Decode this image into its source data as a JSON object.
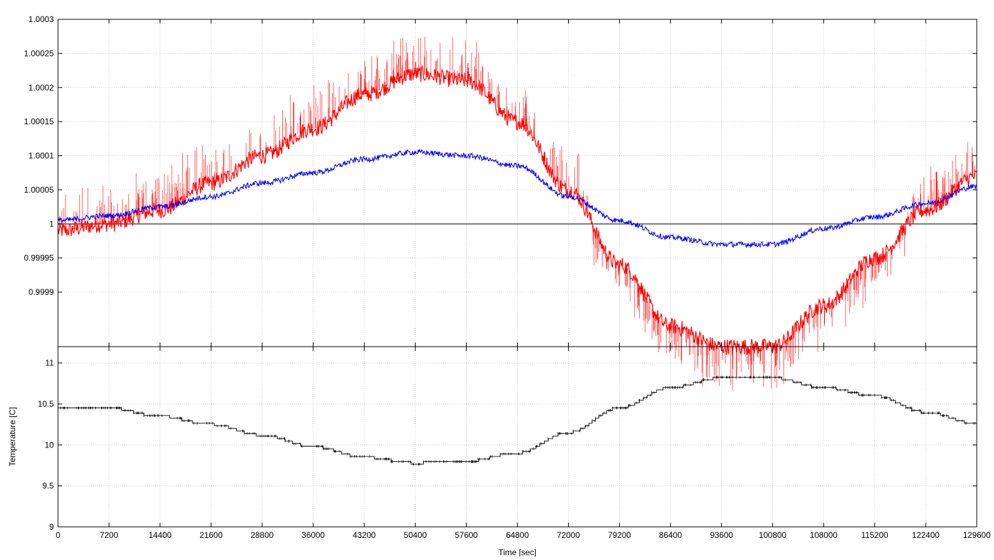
{
  "chart_data": [
    {
      "type": "line",
      "panel": "top",
      "title": "",
      "xlabel": "",
      "ylabel": "",
      "xlim": [
        0,
        129600
      ],
      "ylim": [
        0.99982,
        1.0003
      ],
      "xticks": [
        0,
        7200,
        14400,
        21600,
        28800,
        36000,
        43200,
        50400,
        57600,
        64800,
        72000,
        79200,
        86400,
        93600,
        100800,
        108000,
        115200,
        122400,
        129600
      ],
      "yticks": [
        0.9999,
        0.99995,
        1,
        1.00005,
        1.0001,
        1.00015,
        1.0002,
        1.00025,
        1.0003
      ],
      "ytick_labels": [
        "0.9999",
        "0.99995",
        "1",
        "1.00005",
        "1.0001",
        "1.00015",
        "1.0002",
        "1.00025",
        "1.0003"
      ],
      "grid": true,
      "reference_line": 1,
      "series": [
        {
          "color": "#ff0000",
          "x": [
            0,
            7200,
            14400,
            21600,
            28800,
            36000,
            43200,
            50400,
            57600,
            64800,
            72000,
            79200,
            86400,
            93600,
            100800,
            108000,
            115200,
            122400,
            129600
          ],
          "values": [
            0.99999,
            1.0,
            1.00002,
            1.00006,
            1.0001,
            1.00014,
            1.00019,
            1.00022,
            1.00021,
            1.00015,
            1.00005,
            0.99994,
            0.99985,
            0.99982,
            0.99982,
            0.99988,
            0.99995,
            1.00002,
            1.00007
          ],
          "noise_band": 1.2e-05,
          "spike_range": [
            3e-05,
            7e-05
          ]
        },
        {
          "color": "#0000ff",
          "x": [
            0,
            7200,
            14400,
            21600,
            28800,
            36000,
            43200,
            50400,
            57600,
            64800,
            72000,
            79200,
            86400,
            93600,
            100800,
            108000,
            115200,
            122400,
            129600
          ],
          "values": [
            1.000005,
            1.000012,
            1.000025,
            1.00004,
            1.00006,
            1.000075,
            1.000095,
            1.000105,
            1.0001,
            1.000085,
            1.00004,
            1.000005,
            0.99998,
            0.99997,
            0.99997,
            0.999993,
            1.00001,
            1.00003,
            1.000055
          ],
          "noise_band": 4e-06
        }
      ]
    },
    {
      "type": "line",
      "panel": "bottom",
      "title": "",
      "xlabel": "Time [sec]",
      "ylabel": "Temperature [C]",
      "xlim": [
        0,
        129600
      ],
      "ylim": [
        9,
        11.2
      ],
      "xticks": [
        0,
        7200,
        14400,
        21600,
        28800,
        36000,
        43200,
        50400,
        57600,
        64800,
        72000,
        79200,
        86400,
        93600,
        100800,
        108000,
        115200,
        122400,
        129600
      ],
      "yticks": [
        9,
        9.5,
        10,
        10.5,
        11
      ],
      "ytick_labels": [
        "9",
        "9.5",
        "10",
        "10.5",
        "11"
      ],
      "grid": true,
      "series": [
        {
          "color": "#000000",
          "x": [
            0,
            7200,
            14400,
            21600,
            28800,
            36000,
            43200,
            50400,
            57600,
            64800,
            72000,
            79200,
            86400,
            93600,
            100800,
            108000,
            115200,
            122400,
            129600
          ],
          "values": [
            10.45,
            10.45,
            10.35,
            10.25,
            10.12,
            9.98,
            9.85,
            9.78,
            9.8,
            9.9,
            10.15,
            10.45,
            10.7,
            10.82,
            10.82,
            10.7,
            10.6,
            10.4,
            10.26
          ]
        }
      ]
    }
  ]
}
